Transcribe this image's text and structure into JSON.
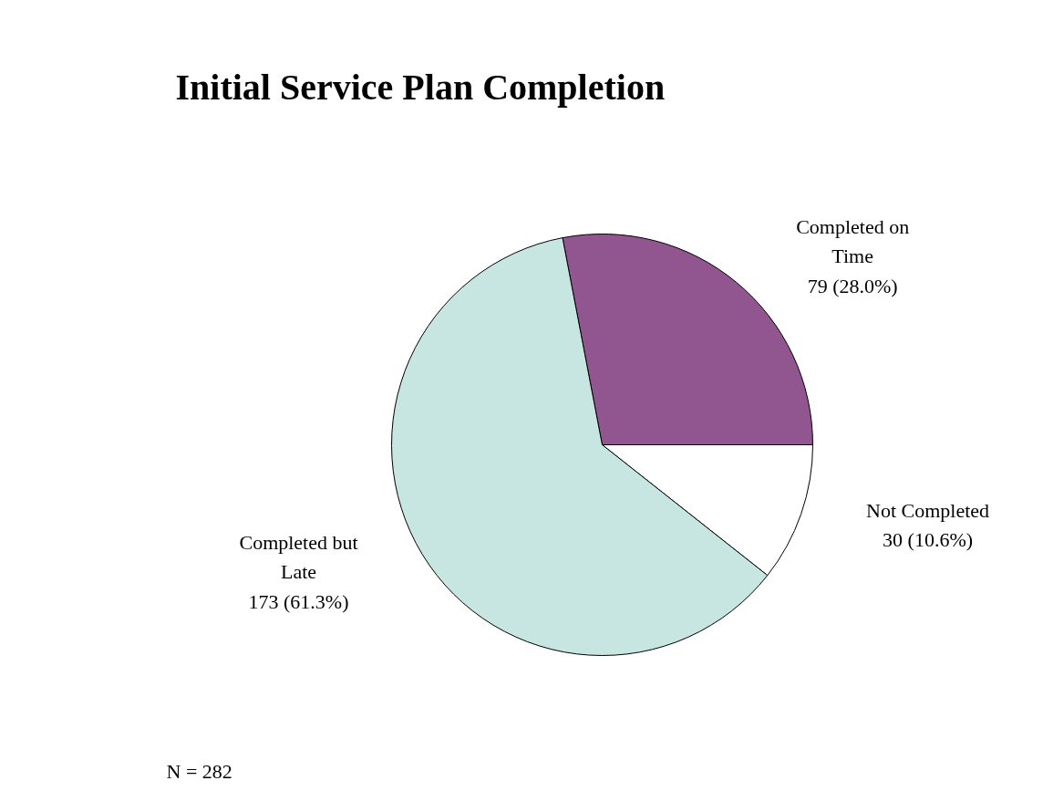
{
  "chart_data": {
    "type": "pie",
    "title": "Initial Service Plan Completion",
    "categories": [
      "Completed on\nTime",
      "Not Completed",
      "Completed but\nLate"
    ],
    "values": [
      79,
      30,
      173
    ],
    "value_labels": [
      "79 (28.0%)",
      "30 (10.6%)",
      "173 (61.3%)"
    ],
    "colors": [
      "#91568f",
      "#ffffff",
      "#c7e6e1"
    ],
    "annotations": [
      "N = 282"
    ]
  }
}
